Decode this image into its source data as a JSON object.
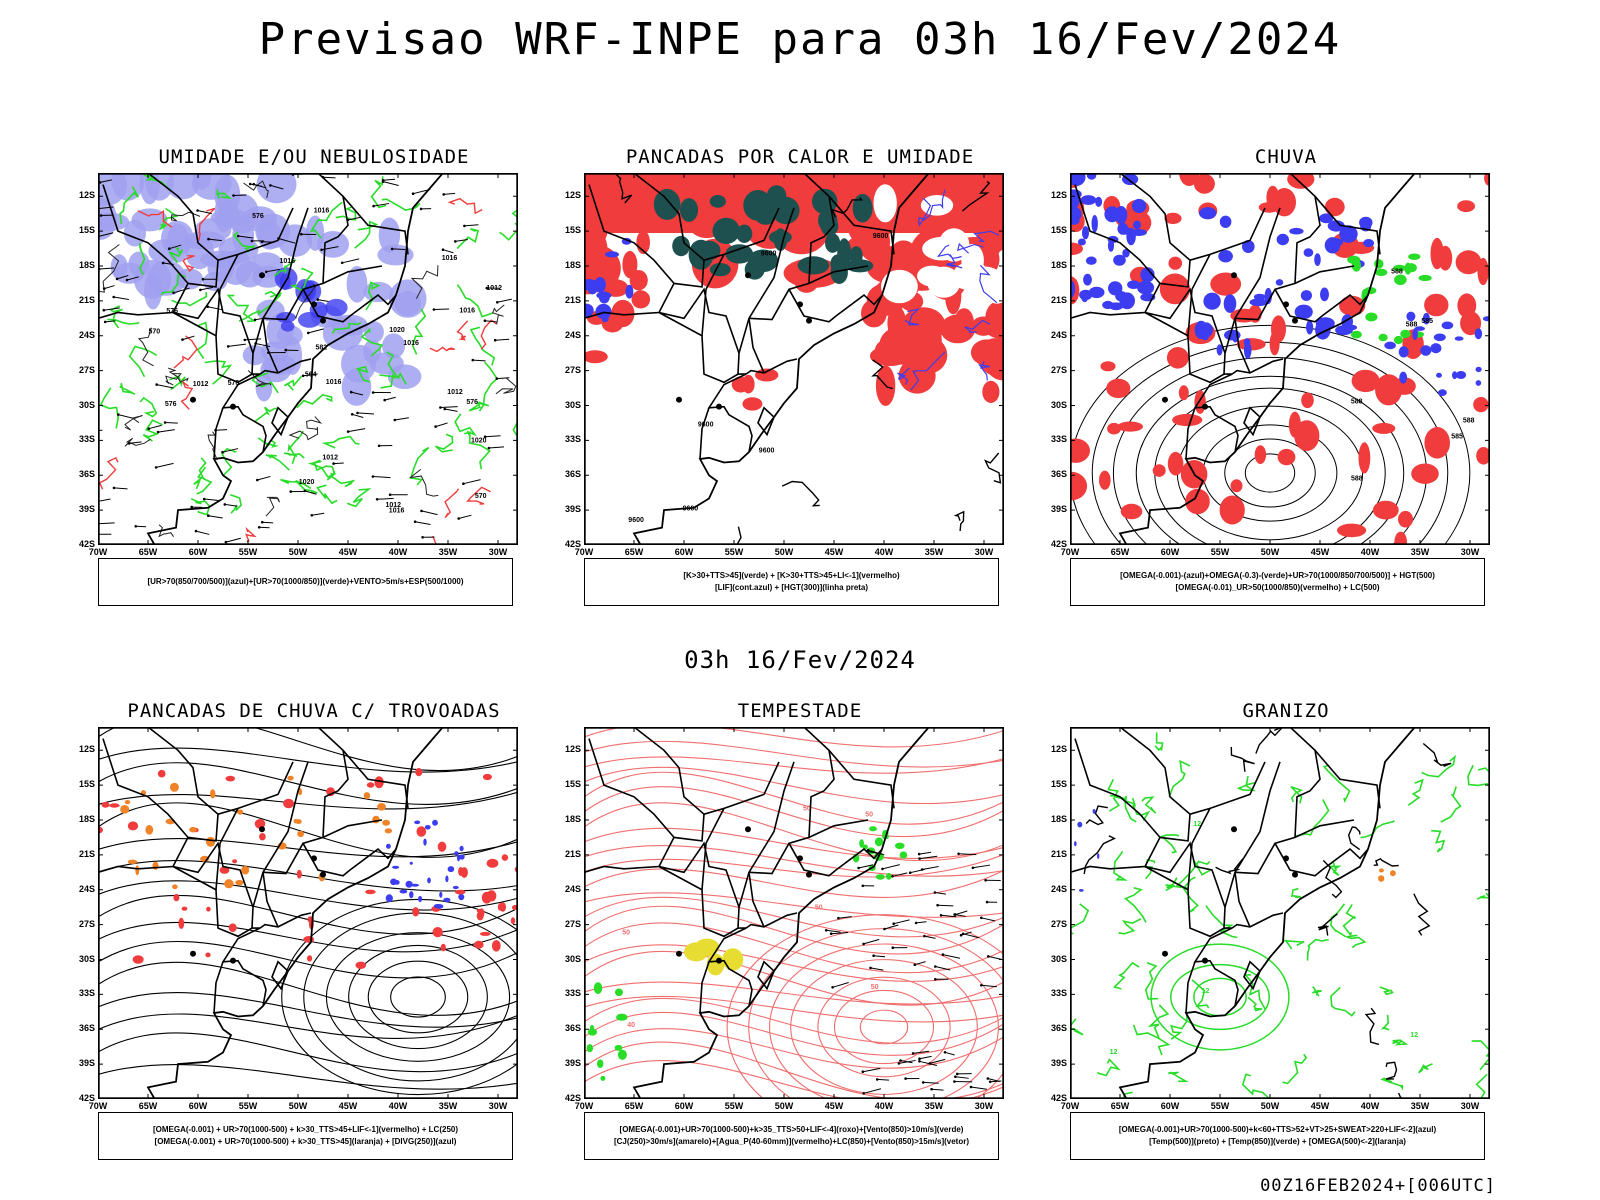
{
  "header": {
    "title": "Previsao WRF-INPE  para 03h 16/Fev/2024"
  },
  "mid_title": "03h 16/Fev/2024",
  "footer": "00Z16FEB2024+[006UTC]",
  "axes": {
    "lat_labels": [
      "12S",
      "15S",
      "18S",
      "21S",
      "24S",
      "27S",
      "30S",
      "33S",
      "36S",
      "39S",
      "42S"
    ],
    "lon_labels": [
      "70W",
      "65W",
      "60W",
      "55W",
      "50W",
      "45W",
      "40W",
      "35W",
      "30W"
    ]
  },
  "colors": {
    "red": "#f03c3c",
    "blue": "#3c3cf0",
    "green": "#28dc28",
    "lavender": "#a0a0f0",
    "darkteal": "#1e5050",
    "orange": "#f08228",
    "yellow": "#e6dc32",
    "lightred": "#f06e6e"
  },
  "panels": [
    {
      "id": "umidade",
      "title": "UMIDADE E/OU NEBULOSIDADE",
      "legend": [
        "[UR>70(850/700/500)](azul)+[UR>70(1000/850)](verde)+VENTO>5m/s+ESP(500/1000)"
      ],
      "labels": [
        "1020",
        "1012",
        "1016",
        "1016",
        "1016",
        "1012",
        "1012",
        "1012",
        "1016",
        "1020",
        "1016",
        "1020",
        "1016",
        "1016",
        "1012",
        "576",
        "576",
        "576",
        "570",
        "570",
        "564",
        "582",
        "576",
        "570"
      ]
    },
    {
      "id": "pancadas-calor",
      "title": "PANCADAS POR CALOR E UMIDADE",
      "legend": [
        "[K>30+TTS>45](verde) + [K>30+TTS>45+LI<-1](vermelho)",
        "[LIF](cont.azul) + [HGT(300)](linha preta)"
      ],
      "labels": [
        "9600",
        "9600",
        "9600",
        "9600",
        "9600",
        "9600"
      ]
    },
    {
      "id": "chuva",
      "title": "CHUVA",
      "legend": [
        "[OMEGA(-0.001)-(azul)+OMEGA(-0.3)-(verde)+UR>70(1000/850/700/500)] + HGT(500)",
        "[OMEGA(-0.01)_UR>50(1000/850)(vermelho) + LC(500)"
      ],
      "labels": [
        "588",
        "588",
        "588",
        "585",
        "588",
        "588",
        "585"
      ]
    },
    {
      "id": "trovoadas",
      "title": "PANCADAS DE CHUVA C/ TROVOADAS",
      "legend": [
        "[OMEGA(-0.001) + UR>70(1000-500) + k>30_TTS>45+LIF<-1](vermelho) + LC(250)",
        "[OMEGA(-0.001) + UR>70(1000-500) + k>30_TTS>45](laranja) + [DIVG(250)](azul)"
      ],
      "labels": []
    },
    {
      "id": "tempestade",
      "title": "TEMPESTADE",
      "legend": [
        "[OMEGA(-0.001)+UR>70(1000-500)+k>35_TTS>50+LIF<-4](roxo)+[Vento(850)>10m/s](verde)",
        "[CJ(250)>30m/s](amarelo)+[Agua_P(40-60mm)](vermelho)+LC(850)+[Vento(850)>15m/s](vetor)"
      ],
      "labels": [
        "50",
        "50",
        "50",
        "40",
        "50",
        "50"
      ]
    },
    {
      "id": "granizo",
      "title": "GRANIZO",
      "legend": [
        "[OMEGA(-0.001)+UR>70(1000-500)+k<60+TTS>52+VT>25+SWEAT>220+LIF<-2](azul)",
        "[Temp(500)](preto) + [Temp(850)](verde) + [OMEGA(500)<-2](laranja)"
      ],
      "labels": [
        "12",
        "12",
        "12",
        "12"
      ]
    }
  ]
}
